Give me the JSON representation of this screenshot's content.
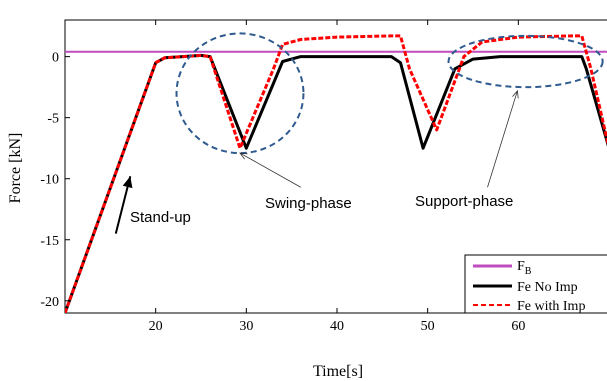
{
  "chart_data": {
    "type": "line",
    "xlabel": "Time[s]",
    "ylabel": "Force [kN]",
    "xlim": [
      10,
      70
    ],
    "ylim": [
      -21,
      3
    ],
    "xticks": [
      20,
      30,
      40,
      50,
      60
    ],
    "yticks": [
      0,
      -5,
      -10,
      -15,
      -20
    ],
    "grid": false,
    "legend_position": "bottom-right",
    "series": [
      {
        "name": "F_B",
        "legend_main": "F",
        "legend_sub": "B",
        "color": "#c04cbf",
        "style": "solid",
        "x": [
          10,
          70
        ],
        "y": [
          0.4,
          0.4
        ]
      },
      {
        "name": "Fe No Imp",
        "color": "#000000",
        "style": "solid",
        "x": [
          10,
          20,
          21,
          23,
          25,
          26,
          30,
          34,
          36,
          46,
          47,
          49.5,
          53,
          55,
          58,
          67,
          67.5,
          70
        ],
        "y": [
          -21,
          -0.5,
          -0.1,
          0,
          0.1,
          0,
          -7.5,
          -0.4,
          0,
          0,
          -0.5,
          -7.5,
          -1,
          -0.2,
          0,
          0,
          -1,
          -7.5
        ]
      },
      {
        "name": "Fe with Imp",
        "color": "#ff0000",
        "style": "dashed",
        "x": [
          10,
          20,
          21,
          23,
          25,
          26,
          29.3,
          33,
          34,
          36,
          40,
          46,
          47,
          48,
          51,
          54,
          56,
          60,
          66,
          67,
          68,
          70
        ],
        "y": [
          -21,
          -0.5,
          -0.1,
          0,
          0.1,
          0,
          -7.5,
          -1,
          1.0,
          1.4,
          1.6,
          1.7,
          1.7,
          -1,
          -6,
          0,
          1.2,
          1.6,
          1.7,
          1.7,
          -1,
          -7.5
        ]
      }
    ],
    "annotations": [
      {
        "text": "Stand-up",
        "target_x": 17.2,
        "target_y": -9.8,
        "from_x": 15.6,
        "from_y": -14.5
      },
      {
        "text": "Swing-phase",
        "target_x": 29.3,
        "target_y": -7.9,
        "from_x": 36.0,
        "from_y": -10.7
      },
      {
        "text": "Support-phase",
        "target_x": 59.9,
        "target_y": -2.8,
        "from_x": 56.6,
        "from_y": -10.7
      }
    ],
    "ellipses": [
      {
        "name": "swing",
        "cx": 29.3,
        "cy": -3.0,
        "rx": 7.0,
        "ry": 4.9
      },
      {
        "name": "support",
        "cx": 60.8,
        "cy": -0.4,
        "rx": 8.5,
        "ry": 2.1
      }
    ]
  }
}
